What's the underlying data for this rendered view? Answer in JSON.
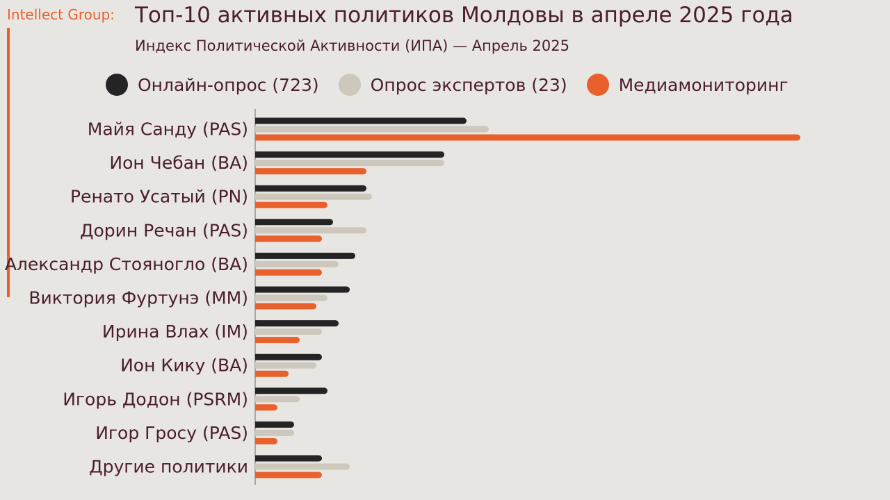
{
  "header": {
    "brand": "Intellect Group:",
    "title": "Топ-10 активных политиков Молдовы в апреле 2025 года",
    "subtitle": "Индекс Политической Активности (ИПА) — Апрель 2025"
  },
  "colors": {
    "online": "#242424",
    "experts": "#cdc7bc",
    "media": "#e8612c",
    "accent": "#e8612c",
    "text": "#4a1e2a",
    "background": "#e8e6e3"
  },
  "chart_data": {
    "type": "bar",
    "orientation": "horizontal",
    "grid": false,
    "legend_position": "top",
    "xlim": [
      0,
      100
    ],
    "categories": [
      "Майя Санду (PAS)",
      "Ион Чебан (BA)",
      "Ренато Усатый (PN)",
      "Дорин Речан (PAS)",
      "Александр Стояногло (BA)",
      "Виктория Фуртунэ (MM)",
      "Ирина Влах (IM)",
      "Ион Кику (BA)",
      "Игорь Додон (PSRM)",
      "Игор Гросу (PAS)",
      "Другие политики"
    ],
    "series": [
      {
        "name": "Онлайн-опрос (723)",
        "values": [
          38,
          34,
          20,
          14,
          18,
          17,
          15,
          12,
          13,
          7,
          12
        ]
      },
      {
        "name": "Опрос экспертов (23)",
        "values": [
          42,
          34,
          21,
          20,
          15,
          13,
          12,
          11,
          8,
          7,
          17
        ]
      },
      {
        "name": "Медиамониторинг",
        "values": [
          98,
          20,
          13,
          12,
          12,
          11,
          8,
          6,
          4,
          4,
          12
        ]
      }
    ]
  }
}
